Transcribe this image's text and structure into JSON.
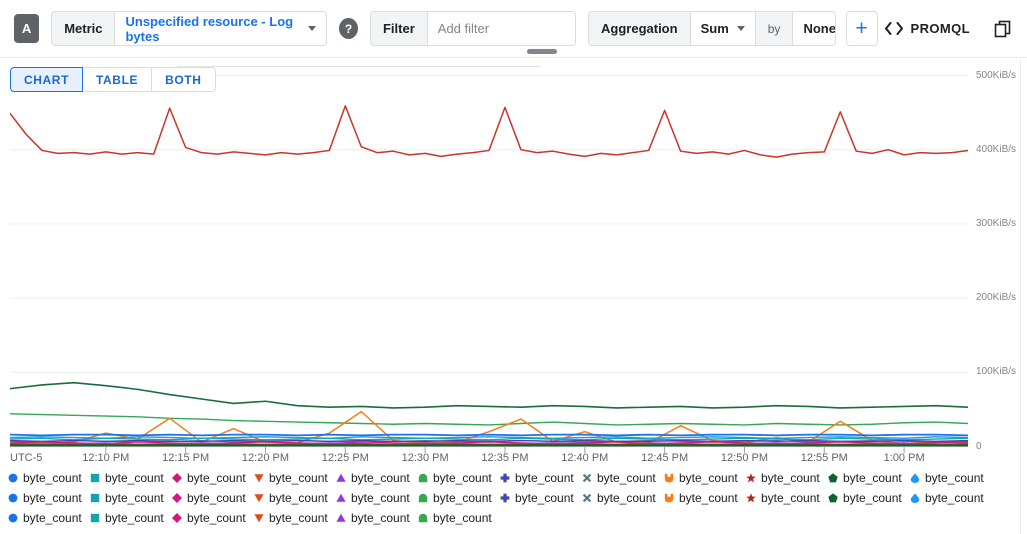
{
  "toolbar": {
    "series_badge": "A",
    "metric_label": "Metric",
    "metric_value": "Unspecified resource - Log bytes",
    "help_glyph": "?",
    "filter_label": "Filter",
    "filter_placeholder": "Add filter",
    "aggregation_label": "Aggregation",
    "aggregation_value": "Sum",
    "by_label": "by",
    "by_value": "None",
    "add_query_label": "+",
    "promql_label": "PROMQL",
    "accent_color": "#1a73e8"
  },
  "tabs": [
    {
      "label": "CHART",
      "selected": true
    },
    {
      "label": "TABLE",
      "selected": false
    },
    {
      "label": "BOTH",
      "selected": false
    }
  ],
  "chart_data": {
    "type": "line",
    "title": "",
    "unit": "KiB/s",
    "ylim": [
      0,
      500
    ],
    "grid": true,
    "y_ticks": [
      {
        "value": 500,
        "label": "500KiB/s"
      },
      {
        "value": 400,
        "label": "400KiB/s"
      },
      {
        "value": 300,
        "label": "300KiB/s"
      },
      {
        "value": 200,
        "label": "200KiB/s"
      },
      {
        "value": 100,
        "label": "100KiB/s"
      },
      {
        "value": 0,
        "label": "0"
      }
    ],
    "x_axis": {
      "timezone_label": "UTC-5",
      "span_min": 60,
      "start_time": "12:04 PM",
      "end_time": "1:04 PM",
      "ticks": [
        {
          "min": 6,
          "label": "12:10 PM"
        },
        {
          "min": 11,
          "label": "12:15 PM"
        },
        {
          "min": 16,
          "label": "12:20 PM"
        },
        {
          "min": 21,
          "label": "12:25 PM"
        },
        {
          "min": 26,
          "label": "12:30 PM"
        },
        {
          "min": 31,
          "label": "12:35 PM"
        },
        {
          "min": 36,
          "label": "12:40 PM"
        },
        {
          "min": 41,
          "label": "12:45 PM"
        },
        {
          "min": 46,
          "label": "12:50 PM"
        },
        {
          "min": 51,
          "label": "12:55 PM"
        },
        {
          "min": 56,
          "label": "1:00 PM"
        }
      ]
    },
    "series": [
      {
        "name": "byte_count",
        "color": "#c93529",
        "width": 1.5,
        "values": [
          449,
          421,
          399,
          395,
          396,
          394,
          397,
          394,
          396,
          394,
          456,
          403,
          396,
          394,
          397,
          395,
          393,
          396,
          394,
          396,
          399,
          459,
          404,
          396,
          398,
          393,
          395,
          391,
          394,
          396,
          399,
          457,
          400,
          396,
          398,
          394,
          391,
          395,
          393,
          396,
          399,
          453,
          398,
          395,
          397,
          394,
          399,
          393,
          390,
          394,
          396,
          397,
          451,
          398,
          395,
          400,
          393,
          396,
          395,
          396,
          399
        ]
      },
      {
        "name": "byte_count",
        "color": "#176e38",
        "width": 1.6,
        "values": [
          78,
          83,
          86,
          82,
          77,
          70,
          64,
          58,
          61,
          55,
          53,
          54,
          52,
          53,
          55,
          54,
          53,
          55,
          54,
          52,
          53,
          54,
          52,
          53,
          55,
          54,
          52,
          53,
          54,
          55,
          53
        ]
      },
      {
        "name": "byte_count",
        "color": "#34a853",
        "width": 1.4,
        "values": [
          44,
          43,
          42,
          41,
          40,
          38,
          37,
          35,
          34,
          33,
          32,
          31,
          30,
          31,
          30,
          29,
          31,
          33,
          31,
          29,
          30,
          31,
          30,
          29,
          31,
          30,
          29,
          30,
          32,
          33,
          31
        ]
      },
      {
        "name": "byte_count",
        "color": "#fa7b17",
        "width": 1.5,
        "values": [
          5,
          4,
          6,
          18,
          10,
          38,
          6,
          24,
          6,
          5,
          18,
          47,
          8,
          5,
          6,
          20,
          37,
          7,
          20,
          6,
          5,
          28,
          8,
          5,
          12,
          6,
          34,
          8,
          4,
          6,
          5
        ]
      },
      {
        "name": "byte_count",
        "color": "#1a73e8",
        "width": 1.8,
        "values": [
          16,
          15,
          16,
          16,
          15,
          16,
          15,
          16,
          16,
          15,
          16,
          15,
          16,
          16,
          15,
          16,
          15,
          16,
          16,
          15,
          16,
          15,
          16,
          16,
          15,
          16,
          16,
          15,
          16,
          16,
          15
        ]
      },
      {
        "name": "byte_count",
        "color": "#2196f3",
        "width": 1.4,
        "values": [
          12,
          13,
          12,
          11,
          13,
          12,
          11,
          12,
          13,
          12,
          11,
          13,
          12,
          11,
          12,
          13,
          12,
          11,
          12,
          13,
          11,
          12,
          13,
          12,
          11,
          12,
          13,
          12,
          11,
          13,
          12
        ]
      },
      {
        "name": "byte_count",
        "color": "#12a4af",
        "width": 1.4,
        "values": [
          10,
          11,
          9,
          11,
          10,
          9,
          11,
          10,
          9,
          10,
          11,
          9,
          10,
          11,
          10,
          9,
          11,
          10,
          9,
          11,
          10,
          9,
          10,
          11,
          10,
          9,
          11,
          10,
          9,
          10,
          11
        ]
      },
      {
        "name": "byte_count",
        "color": "#5f7c8a",
        "width": 1.2,
        "values": [
          7,
          6,
          8,
          7,
          6,
          7,
          8,
          6,
          7,
          8,
          7,
          6,
          7,
          8,
          7,
          6,
          8,
          7,
          6,
          7,
          8,
          7,
          6,
          7,
          8,
          6,
          7,
          8,
          7,
          6,
          7
        ]
      },
      {
        "name": "byte_count",
        "color": "#3d49a5",
        "width": 1.4,
        "values": [
          8,
          7,
          8,
          7,
          8,
          7,
          7,
          8,
          7,
          8,
          7,
          8,
          7,
          7,
          8,
          7,
          8,
          7,
          8,
          7,
          7,
          8,
          7,
          8,
          7,
          8,
          7,
          7,
          8,
          7,
          8
        ]
      },
      {
        "name": "byte_count",
        "color": "#d01884",
        "width": 1.2,
        "values": [
          5,
          6,
          5,
          4,
          6,
          5,
          4,
          5,
          6,
          5,
          4,
          6,
          5,
          4,
          5,
          6,
          5,
          4,
          5,
          6,
          4,
          5,
          6,
          5,
          4,
          5,
          6,
          5,
          4,
          5,
          6
        ]
      },
      {
        "name": "byte_count",
        "color": "#9334e6",
        "width": 1.2,
        "values": [
          4,
          3,
          4,
          5,
          3,
          4,
          5,
          4,
          3,
          4,
          5,
          4,
          3,
          5,
          4,
          3,
          4,
          5,
          4,
          3,
          5,
          4,
          3,
          4,
          5,
          4,
          3,
          4,
          5,
          3,
          4
        ]
      },
      {
        "name": "byte_count",
        "color": "#d93025",
        "width": 1.6,
        "values": [
          3,
          3,
          3,
          3,
          3,
          3,
          3,
          3,
          3,
          3,
          3,
          3,
          3,
          3,
          3,
          3,
          3,
          3,
          3,
          3,
          3,
          3,
          3,
          3,
          3,
          3,
          3,
          3,
          3,
          3,
          3
        ]
      },
      {
        "name": "byte_count",
        "color": "#0d652d",
        "width": 2.2,
        "values": [
          1.5,
          1.5,
          1.5,
          1.5,
          1.5,
          1.5,
          1.5,
          1.5,
          1.5,
          1.5,
          1.5,
          1.5,
          1.5,
          1.5,
          1.5,
          1.5,
          1.5,
          1.5,
          1.5,
          1.5,
          1.5,
          1.5,
          1.5,
          1.5,
          1.5,
          1.5,
          1.5,
          1.5,
          1.5,
          1.5,
          1.5
        ]
      }
    ]
  },
  "legend": {
    "items": [
      {
        "shape": "circle",
        "color": "#1a73e8",
        "label": "byte_count"
      },
      {
        "shape": "square",
        "color": "#12a4af",
        "label": "byte_count"
      },
      {
        "shape": "diamond",
        "color": "#d01884",
        "label": "byte_count"
      },
      {
        "shape": "triangle-down",
        "color": "#e64a19",
        "label": "byte_count"
      },
      {
        "shape": "triangle-up",
        "color": "#9334e6",
        "label": "byte_count"
      },
      {
        "shape": "dome",
        "color": "#34a853",
        "label": "byte_count"
      },
      {
        "shape": "plus",
        "color": "#3d49a5",
        "label": "byte_count"
      },
      {
        "shape": "x",
        "color": "#5f7c8a",
        "label": "byte_count"
      },
      {
        "shape": "cup",
        "color": "#fa7b17",
        "label": "byte_count"
      },
      {
        "shape": "star",
        "color": "#b3261e",
        "label": "byte_count"
      },
      {
        "shape": "pentagon",
        "color": "#0d652d",
        "label": "byte_count"
      },
      {
        "shape": "droplet",
        "color": "#2196f3",
        "label": "byte_count"
      },
      {
        "shape": "circle",
        "color": "#1a73e8",
        "label": "byte_count"
      },
      {
        "shape": "square",
        "color": "#12a4af",
        "label": "byte_count"
      },
      {
        "shape": "diamond",
        "color": "#d01884",
        "label": "byte_count"
      },
      {
        "shape": "triangle-down",
        "color": "#e64a19",
        "label": "byte_count"
      },
      {
        "shape": "triangle-up",
        "color": "#9334e6",
        "label": "byte_count"
      },
      {
        "shape": "dome",
        "color": "#34a853",
        "label": "byte_count"
      },
      {
        "shape": "plus",
        "color": "#3d49a5",
        "label": "byte_count"
      },
      {
        "shape": "x",
        "color": "#5f7c8a",
        "label": "byte_count"
      },
      {
        "shape": "cup",
        "color": "#fa7b17",
        "label": "byte_count"
      },
      {
        "shape": "star",
        "color": "#b3261e",
        "label": "byte_count"
      },
      {
        "shape": "pentagon",
        "color": "#0d652d",
        "label": "byte_count"
      },
      {
        "shape": "droplet",
        "color": "#2196f3",
        "label": "byte_count"
      },
      {
        "shape": "circle",
        "color": "#1a73e8",
        "label": "byte_count"
      },
      {
        "shape": "square",
        "color": "#12a4af",
        "label": "byte_count"
      },
      {
        "shape": "diamond",
        "color": "#d01884",
        "label": "byte_count"
      },
      {
        "shape": "triangle-down",
        "color": "#e64a19",
        "label": "byte_count"
      },
      {
        "shape": "triangle-up",
        "color": "#9334e6",
        "label": "byte_count"
      },
      {
        "shape": "dome",
        "color": "#34a853",
        "label": "byte_count"
      }
    ]
  }
}
